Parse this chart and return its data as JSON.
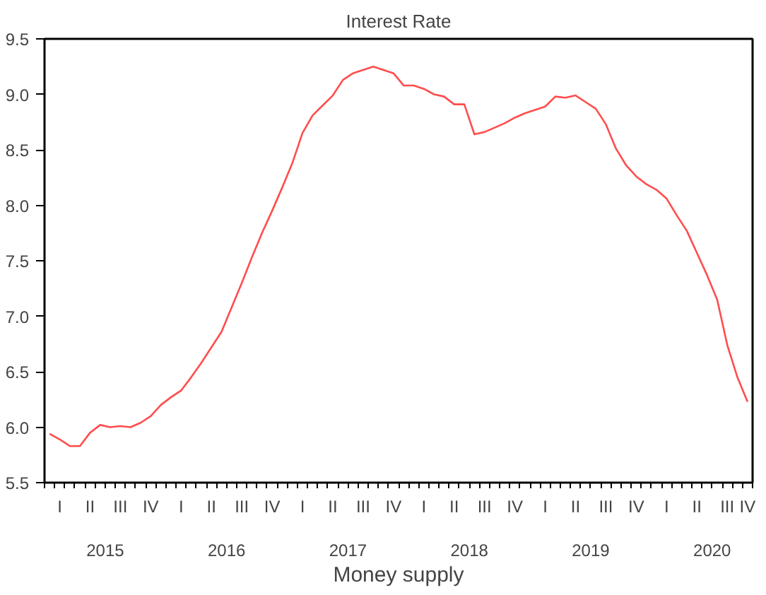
{
  "chart_data": {
    "type": "line",
    "title": "Interest Rate",
    "xlabel": "Money supply",
    "categories": [
      null,
      "I",
      null,
      null,
      "II",
      null,
      null,
      "III",
      null,
      null,
      "IV",
      null,
      null,
      "I",
      null,
      null,
      "II",
      null,
      null,
      "III",
      null,
      null,
      "IV",
      null,
      null,
      "I",
      null,
      null,
      "II",
      null,
      null,
      "III",
      null,
      null,
      "IV",
      null,
      null,
      "I",
      null,
      null,
      "II",
      null,
      null,
      "III",
      null,
      null,
      "IV",
      null,
      null,
      "I",
      null,
      null,
      "II",
      null,
      null,
      "III",
      null,
      null,
      "IV",
      null,
      null,
      "I",
      null,
      null,
      "II",
      null,
      null,
      "III",
      null,
      "IV"
    ],
    "series": [
      {
        "color": "#ff4d4d",
        "values": [
          5.94,
          5.89,
          5.83,
          5.83,
          5.95,
          6.02,
          6.0,
          6.01,
          6.0,
          6.04,
          6.1,
          6.2,
          6.27,
          6.33,
          6.45,
          6.58,
          6.72,
          6.86,
          7.08,
          7.3,
          7.53,
          7.75,
          7.95,
          8.16,
          8.38,
          8.65,
          8.81,
          8.9,
          8.99,
          9.13,
          9.19,
          9.22,
          9.25,
          9.22,
          9.19,
          9.08,
          9.08,
          9.05,
          9.0,
          8.98,
          8.91,
          8.91,
          8.64,
          8.66,
          8.7,
          8.74,
          8.79,
          8.83,
          8.86,
          8.89,
          8.98,
          8.97,
          8.99,
          8.93,
          8.87,
          8.73,
          8.51,
          8.36,
          8.26,
          8.19,
          8.14,
          8.06,
          7.91,
          7.77,
          7.57,
          7.37,
          7.15,
          6.74,
          6.45,
          6.23
        ]
      }
    ],
    "annotations": [
      "2015",
      "2016",
      "2017",
      "2018",
      "2019",
      "2020"
    ],
    "ylim": [
      5.5,
      9.5
    ],
    "yticks": [
      5.5,
      {
        "value": 6,
        "label": "6.0"
      },
      6.5,
      {
        "value": 7,
        "label": "7.0"
      },
      7.5,
      {
        "value": 8,
        "label": "8.0"
      },
      8.5,
      {
        "value": 9,
        "label": "9.0"
      },
      9.5
    ]
  }
}
